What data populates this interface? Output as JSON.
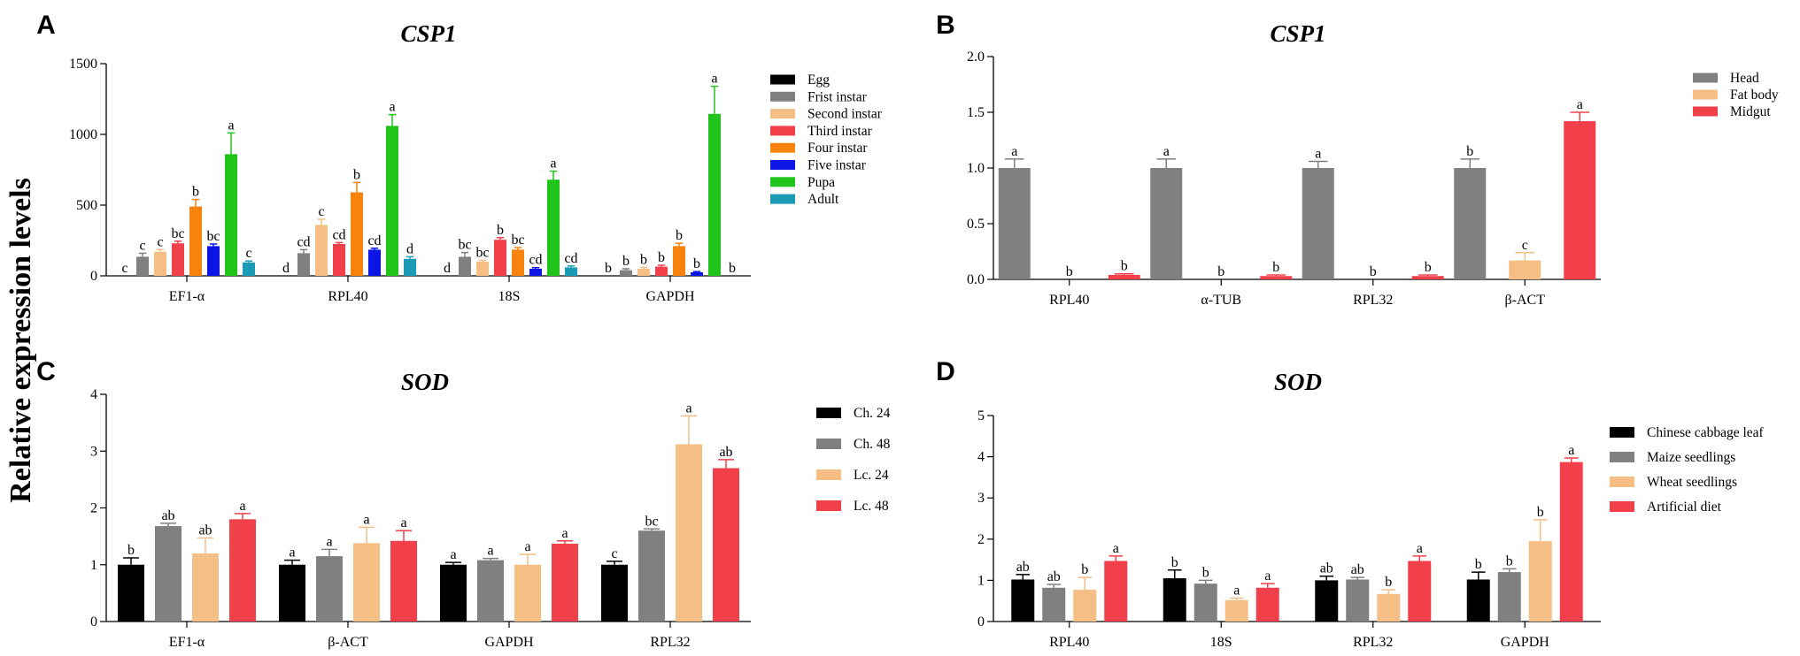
{
  "figure": {
    "ylabel": "Relative expression levels"
  },
  "chart_data": [
    {
      "panel": "A",
      "type": "bar",
      "title": "CSP1",
      "ylabel": "Relative expression levels",
      "ylim": [
        0,
        1500
      ],
      "yticks": [
        0,
        500,
        1000,
        1500
      ],
      "categories": [
        "EF1-α",
        "RPL40",
        "18S",
        "GAPDH"
      ],
      "series": [
        {
          "name": "Egg",
          "color": "#000000",
          "values": [
            0,
            0,
            0,
            0
          ],
          "errors": [
            0,
            0,
            0,
            0
          ],
          "labels": [
            "c",
            "d",
            "d",
            "b"
          ]
        },
        {
          "name": "Frist instar",
          "color": "#808080",
          "values": [
            135,
            160,
            135,
            40
          ],
          "errors": [
            25,
            25,
            30,
            10
          ],
          "labels": [
            "c",
            "cd",
            "bc",
            "b"
          ]
        },
        {
          "name": "Second instar",
          "color": "#F5BE84",
          "values": [
            170,
            360,
            100,
            50
          ],
          "errors": [
            15,
            40,
            10,
            10
          ],
          "labels": [
            "c",
            "c",
            "bc",
            "b"
          ]
        },
        {
          "name": "Third instar",
          "color": "#F2404A",
          "values": [
            230,
            225,
            255,
            65
          ],
          "errors": [
            15,
            10,
            15,
            10
          ],
          "labels": [
            "bc",
            "cd",
            "b",
            "b"
          ]
        },
        {
          "name": "Four instar",
          "color": "#F7820E",
          "values": [
            490,
            590,
            185,
            210
          ],
          "errors": [
            50,
            70,
            15,
            20
          ],
          "labels": [
            "b",
            "b",
            "bc",
            "b"
          ]
        },
        {
          "name": "Five instar",
          "color": "#0A15E6",
          "values": [
            210,
            185,
            50,
            25
          ],
          "errors": [
            15,
            10,
            8,
            5
          ],
          "labels": [
            "bc",
            "cd",
            "cd",
            "b"
          ]
        },
        {
          "name": "Pupa",
          "color": "#21C41A",
          "values": [
            860,
            1060,
            680,
            1145
          ],
          "errors": [
            150,
            80,
            60,
            195
          ],
          "labels": [
            "a",
            "a",
            "a",
            "a"
          ]
        },
        {
          "name": "Adult",
          "color": "#1A9BB3",
          "values": [
            95,
            120,
            60,
            0
          ],
          "errors": [
            10,
            15,
            10,
            0
          ],
          "labels": [
            "c",
            "d",
            "cd",
            "b"
          ]
        }
      ]
    },
    {
      "panel": "B",
      "type": "bar",
      "title": "CSP1",
      "ylim": [
        0,
        2.0
      ],
      "yticks": [
        "0.0",
        "0.5",
        "1.0",
        "1.5",
        "2.0"
      ],
      "categories": [
        "RPL40",
        "α-TUB",
        "RPL32",
        "β-ACT"
      ],
      "series": [
        {
          "name": "Head",
          "color": "#808080",
          "values": [
            1.0,
            1.0,
            1.0,
            1.0
          ],
          "errors": [
            0.08,
            0.08,
            0.06,
            0.08
          ],
          "labels": [
            "a",
            "a",
            "a",
            "b"
          ]
        },
        {
          "name": "Fat body",
          "color": "#F5BE84",
          "values": [
            0.0,
            0.0,
            0.0,
            0.17
          ],
          "errors": [
            0,
            0,
            0,
            0.07
          ],
          "labels": [
            "b",
            "b",
            "b",
            "c"
          ]
        },
        {
          "name": "Midgut",
          "color": "#F2404A",
          "values": [
            0.04,
            0.03,
            0.03,
            1.42
          ],
          "errors": [
            0.01,
            0.01,
            0.01,
            0.08
          ],
          "labels": [
            "b",
            "b",
            "b",
            "a"
          ]
        }
      ]
    },
    {
      "panel": "C",
      "type": "bar",
      "title": "SOD",
      "ylim": [
        0,
        4
      ],
      "yticks": [
        "0",
        "1",
        "2",
        "3",
        "4"
      ],
      "categories": [
        "EF1-α",
        "β-ACT",
        "GAPDH",
        "RPL32"
      ],
      "series": [
        {
          "name": "Ch. 24",
          "color": "#000000",
          "values": [
            1.0,
            1.0,
            1.0,
            1.0
          ],
          "errors": [
            0.12,
            0.08,
            0.04,
            0.06
          ],
          "labels": [
            "b",
            "a",
            "a",
            "c"
          ]
        },
        {
          "name": "Ch. 48",
          "color": "#808080",
          "values": [
            1.68,
            1.15,
            1.08,
            1.6
          ],
          "errors": [
            0.05,
            0.12,
            0.03,
            0.03
          ],
          "labels": [
            "ab",
            "a",
            "a",
            "bc"
          ]
        },
        {
          "name": "Lc. 24",
          "color": "#F5BE84",
          "values": [
            1.2,
            1.38,
            1.0,
            3.12
          ],
          "errors": [
            0.27,
            0.28,
            0.18,
            0.5
          ],
          "labels": [
            "ab",
            "a",
            "a",
            "a"
          ]
        },
        {
          "name": "Lc. 48",
          "color": "#F2404A",
          "values": [
            1.8,
            1.42,
            1.37,
            2.7
          ],
          "errors": [
            0.1,
            0.18,
            0.05,
            0.15
          ],
          "labels": [
            "a",
            "a",
            "a",
            "ab"
          ]
        }
      ]
    },
    {
      "panel": "D",
      "type": "bar",
      "title": "SOD",
      "ylim": [
        0,
        5
      ],
      "yticks": [
        "0",
        "1",
        "2",
        "3",
        "4",
        "5"
      ],
      "categories": [
        "RPL40",
        "18S",
        "RPL32",
        "GAPDH"
      ],
      "series": [
        {
          "name": "Chinese cabbage leaf",
          "color": "#000000",
          "values": [
            1.02,
            1.05,
            1.0,
            1.02
          ],
          "errors": [
            0.12,
            0.2,
            0.1,
            0.18
          ],
          "labels": [
            "ab",
            "b",
            "ab",
            "b"
          ]
        },
        {
          "name": "Maize seedlings",
          "color": "#808080",
          "values": [
            0.82,
            0.92,
            1.02,
            1.2
          ],
          "errors": [
            0.08,
            0.08,
            0.05,
            0.08
          ],
          "labels": [
            "ab",
            "b",
            "ab",
            "b"
          ]
        },
        {
          "name": "Wheat seedlings",
          "color": "#F5BE84",
          "values": [
            0.77,
            0.52,
            0.67,
            1.95
          ],
          "errors": [
            0.3,
            0.05,
            0.1,
            0.52
          ],
          "labels": [
            "b",
            "a",
            "b",
            "b"
          ]
        },
        {
          "name": "Artificial diet",
          "color": "#F2404A",
          "values": [
            1.47,
            0.82,
            1.47,
            3.87
          ],
          "errors": [
            0.12,
            0.1,
            0.12,
            0.1
          ],
          "labels": [
            "a",
            "a",
            "a",
            "a"
          ]
        }
      ]
    }
  ]
}
